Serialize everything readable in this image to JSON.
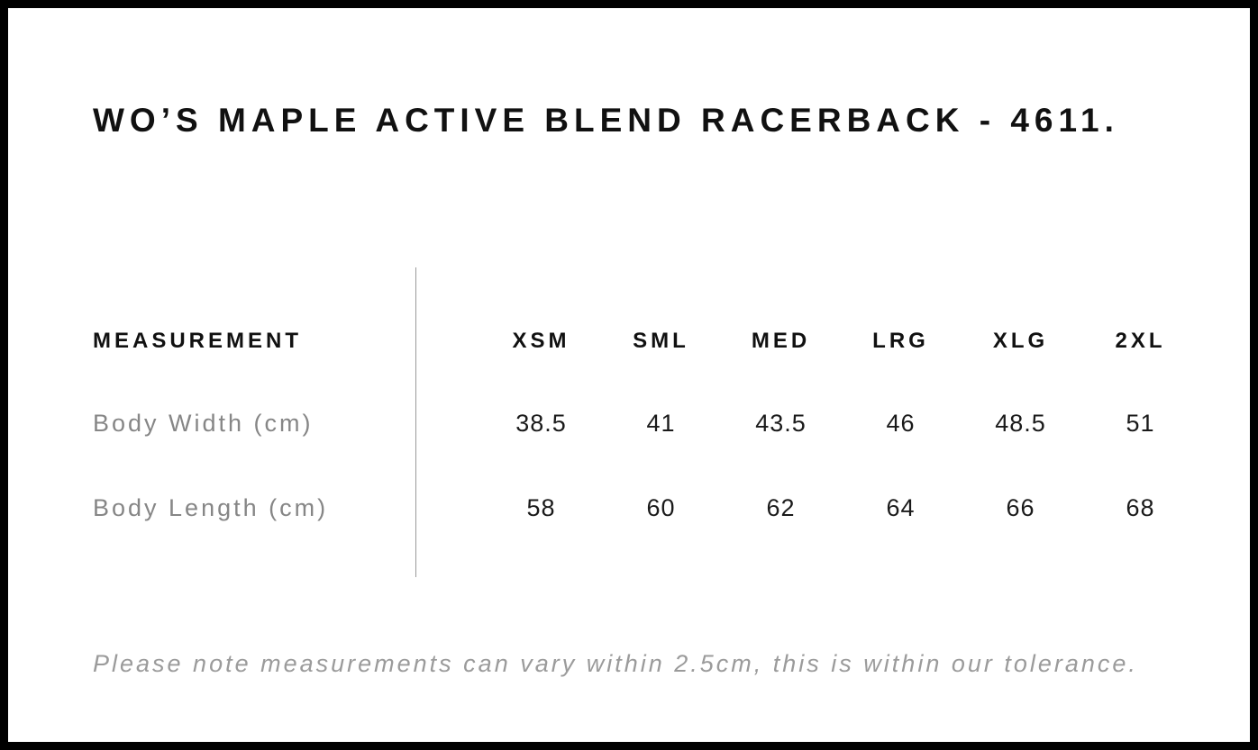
{
  "page": {
    "title": "WO’S MAPLE ACTIVE BLEND RACERBACK - 4611.",
    "note": "Please note measurements can vary within 2.5cm, this is within our tolerance."
  },
  "chart_data": {
    "type": "table",
    "title": "WO’S MAPLE ACTIVE BLEND RACERBACK - 4611.",
    "columns": [
      "MEASUREMENT",
      "XSM",
      "SML",
      "MED",
      "LRG",
      "XLG",
      "2XL"
    ],
    "rows": [
      {
        "label": "Body Width (cm)",
        "values": [
          38.5,
          41,
          43.5,
          46,
          48.5,
          51
        ]
      },
      {
        "label": "Body Length (cm)",
        "values": [
          58,
          60,
          62,
          64,
          66,
          68
        ]
      }
    ],
    "note": "Please note measurements can vary within 2.5cm, this is within our tolerance.",
    "layout": {
      "divider": "vertical line between measurement labels and size columns",
      "grid": false
    }
  }
}
